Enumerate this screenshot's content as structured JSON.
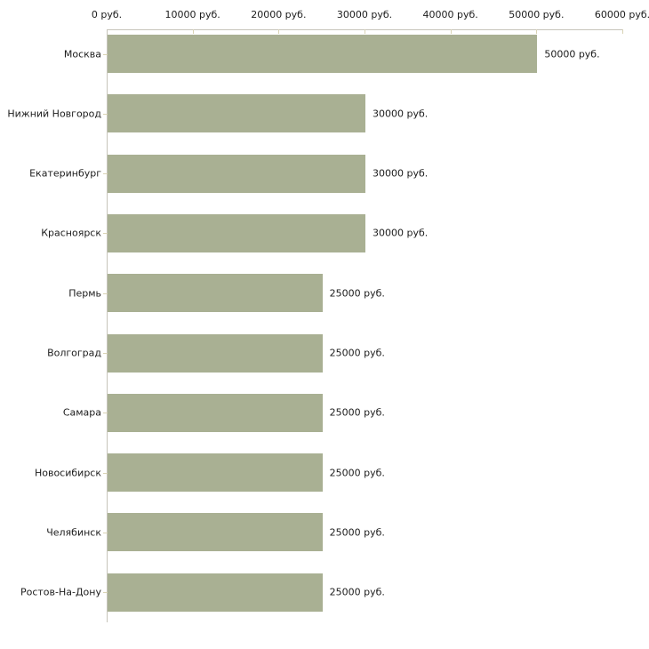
{
  "chart_data": {
    "type": "bar",
    "orientation": "horizontal",
    "title": "",
    "xlabel": "",
    "ylabel": "",
    "unit": "руб.",
    "categories": [
      "Москва",
      "Нижний Новгород",
      "Екатеринбург",
      "Красноярск",
      "Пермь",
      "Волгоград",
      "Самара",
      "Новосибирск",
      "Челябинск",
      "Ростов-На-Дону"
    ],
    "values": [
      50000,
      30000,
      30000,
      30000,
      25000,
      25000,
      25000,
      25000,
      25000,
      25000
    ],
    "value_labels": [
      "50000 руб.",
      "30000 руб.",
      "30000 руб.",
      "30000 руб.",
      "25000 руб.",
      "25000 руб.",
      "25000 руб.",
      "25000 руб.",
      "25000 руб.",
      "25000 руб."
    ],
    "x_ticks": [
      0,
      10000,
      20000,
      30000,
      40000,
      50000,
      60000
    ],
    "x_tick_labels": [
      "0 руб.",
      "10000 руб.",
      "20000 руб.",
      "30000 руб.",
      "40000 руб.",
      "50000 руб.",
      "60000 руб."
    ],
    "xlim": [
      0,
      60000
    ],
    "grid": false,
    "legend": "none",
    "colors": {
      "bar_fill": "#a9b093",
      "axis_line": "#c6c4ba",
      "tick_mark": "#d9d3b4",
      "text": "#1c1c1c",
      "background": "#ffffff"
    }
  }
}
